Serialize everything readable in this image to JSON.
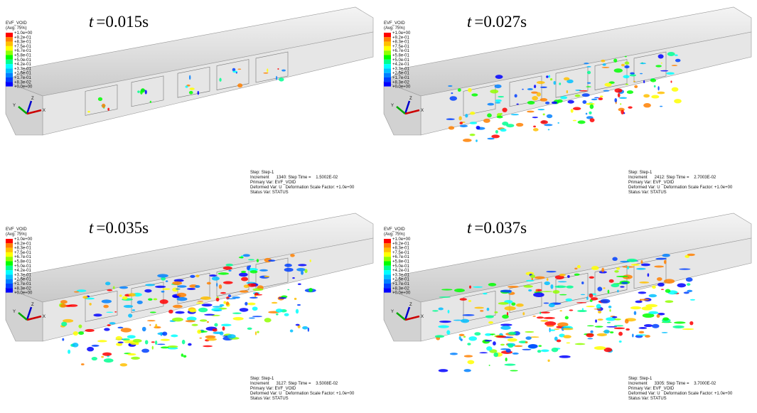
{
  "legend": {
    "title": "EVF_VOID",
    "subtitle": "(Avg: 75%)",
    "ticks": [
      "+1.0e+00",
      "+9.2e-01",
      "+8.3e-01",
      "+7.5e-01",
      "+6.7e-01",
      "+5.8e-01",
      "+5.0e-01",
      "+4.2e-01",
      "+3.3e-01",
      "+2.5e-01",
      "+1.7e-01",
      "+8.3e-02",
      "+0.0e+00"
    ]
  },
  "axes": {
    "y": "Y",
    "z": "Z",
    "x": "X"
  },
  "status": {
    "step": "Step: Step-1",
    "primary": "Primary Var: EVF_VOID",
    "deformed": "Deformed Var: U   Deformation Scale Factor: +1.0e+00",
    "status": "Status Var: STATUS"
  },
  "panels": [
    {
      "time_var": "t",
      "time_value": "=0.015s",
      "increment": "Increment      1340: Step Time =    1.5002E-02"
    },
    {
      "time_var": "t",
      "time_value": "=0.027s",
      "increment": "Increment      2412: Step Time =    2.7003E-02"
    },
    {
      "time_var": "t",
      "time_value": "=0.035s",
      "increment": "Increment      3127: Step Time =    3.5008E-02"
    },
    {
      "time_var": "t",
      "time_value": "=0.037s",
      "increment": "Increment      3305: Step Time =    3.7000E-02"
    }
  ]
}
